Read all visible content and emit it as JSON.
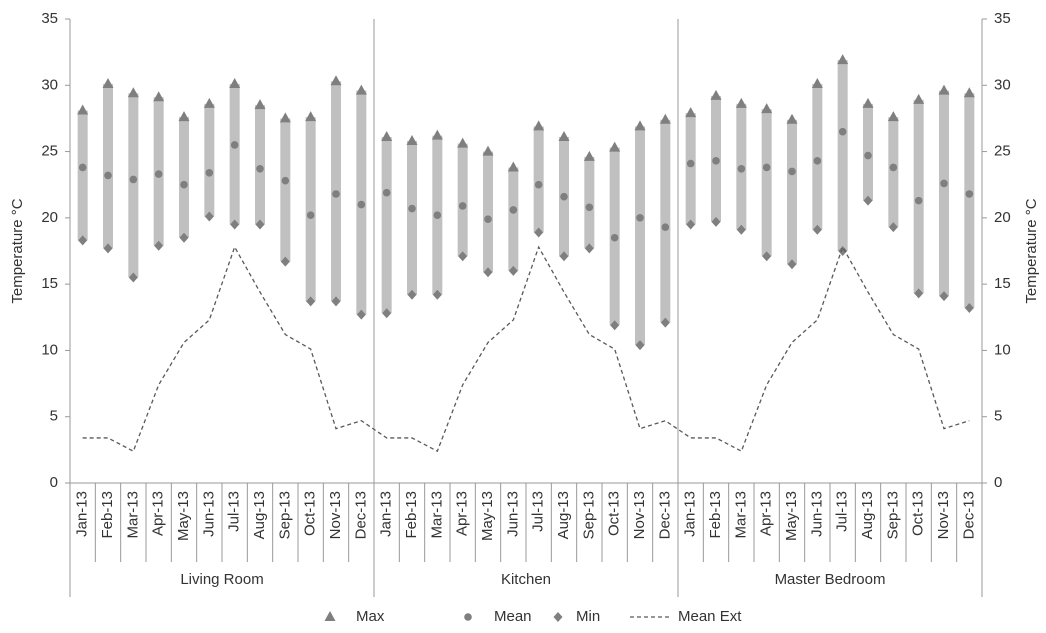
{
  "chart_data": {
    "type": "range",
    "y_label": "Temperature °C",
    "y2_label": "Temperature °C",
    "categories": [
      "Jan-13",
      "Feb-13",
      "Mar-13",
      "Apr-13",
      "May-13",
      "Jun-13",
      "Jul-13",
      "Aug-13",
      "Sep-13",
      "Oct-13",
      "Nov-13",
      "Dec-13",
      "Jan-13",
      "Feb-13",
      "Mar-13",
      "Apr-13",
      "May-13",
      "Jun-13",
      "Jul-13",
      "Aug-13",
      "Sep-13",
      "Oct-13",
      "Nov-13",
      "Dec-13",
      "Jan-13",
      "Feb-13",
      "Mar-13",
      "Apr-13",
      "May-13",
      "Jun-13",
      "Jul-13",
      "Aug-13",
      "Sep-13",
      "Oct-13",
      "Nov-13",
      "Dec-13"
    ],
    "groups": [
      "Living Room",
      "Kitchen",
      "Master Bedroom"
    ],
    "ylim": [
      0,
      35
    ],
    "yticks": [
      0,
      5,
      10,
      15,
      20,
      25,
      30,
      35
    ],
    "y2lim": [
      0,
      35
    ],
    "y2ticks": [
      0,
      5,
      10,
      15,
      20,
      25,
      30,
      35
    ],
    "range_color": "#c0c0c0",
    "series": [
      {
        "name": "Max",
        "color": "#7f7f7f",
        "marker": "triangle",
        "values": [
          28.1,
          30.1,
          29.4,
          29.1,
          27.6,
          28.6,
          30.1,
          28.5,
          27.5,
          27.6,
          30.3,
          29.6,
          26.1,
          25.8,
          26.2,
          25.6,
          25.0,
          23.8,
          26.9,
          26.1,
          24.6,
          25.3,
          26.9,
          27.4,
          27.9,
          29.2,
          28.6,
          28.2,
          27.4,
          30.1,
          31.9,
          28.6,
          27.6,
          28.9,
          29.6,
          29.4
        ]
      },
      {
        "name": "Mean",
        "color": "#7f7f7f",
        "marker": "circle",
        "values": [
          23.8,
          23.2,
          22.9,
          23.3,
          22.5,
          23.4,
          25.5,
          23.7,
          22.8,
          20.2,
          21.8,
          21.0,
          21.9,
          20.7,
          20.2,
          20.9,
          19.9,
          20.6,
          22.5,
          21.6,
          20.8,
          18.5,
          20.0,
          19.3,
          24.1,
          24.3,
          23.7,
          23.8,
          23.5,
          24.3,
          26.5,
          24.7,
          23.8,
          21.3,
          22.6,
          21.8
        ]
      },
      {
        "name": "Min",
        "color": "#7f7f7f",
        "marker": "diamond",
        "values": [
          18.3,
          17.7,
          15.5,
          17.9,
          18.5,
          20.1,
          19.5,
          19.5,
          16.7,
          13.7,
          13.7,
          12.7,
          12.8,
          14.2,
          14.2,
          17.1,
          15.9,
          16.0,
          18.9,
          17.1,
          17.7,
          11.9,
          10.4,
          12.1,
          19.5,
          19.7,
          19.1,
          17.1,
          16.5,
          19.1,
          17.5,
          21.3,
          19.3,
          14.3,
          14.1,
          13.2
        ]
      },
      {
        "name": "Mean Ext",
        "color": "#595959",
        "marker": "dashed-line",
        "values": [
          3.4,
          3.4,
          2.4,
          7.4,
          10.6,
          12.3,
          17.8,
          14.4,
          11.2,
          10.1,
          4.1,
          4.7,
          3.4,
          3.4,
          2.4,
          7.4,
          10.6,
          12.3,
          17.8,
          14.4,
          11.2,
          10.1,
          4.1,
          4.7,
          3.4,
          3.4,
          2.4,
          7.4,
          10.6,
          12.3,
          17.8,
          14.4,
          11.2,
          10.1,
          4.1,
          4.7
        ]
      }
    ]
  }
}
